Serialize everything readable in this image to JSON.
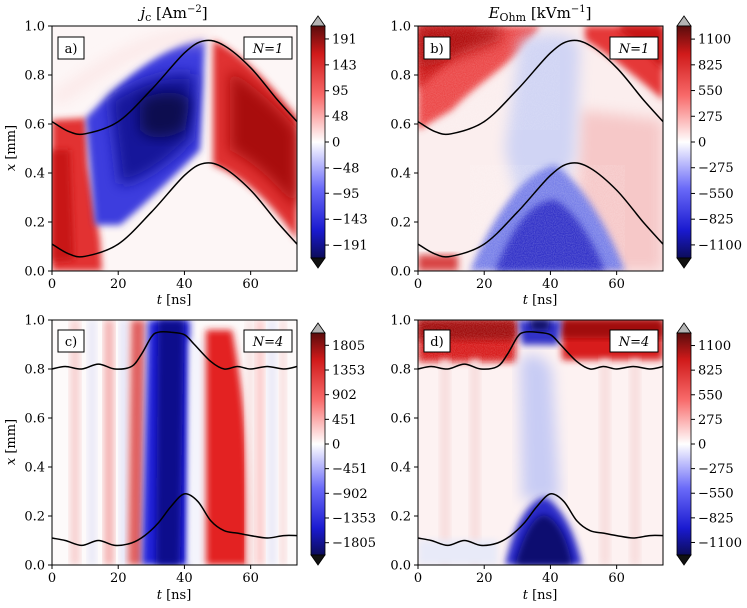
{
  "chart_data": [
    {
      "type": "heatmap",
      "panel_label": "a)",
      "n_label": "N=1",
      "title": "j_c [Am^-2]",
      "xlabel": "t [ns]",
      "ylabel": "x [mm]",
      "xlim": [
        0,
        74
      ],
      "ylim": [
        0,
        1
      ],
      "xticks": [
        "0",
        "20",
        "40",
        "60"
      ],
      "yticks": [
        "0.0",
        "0.2",
        "0.4",
        "0.6",
        "0.8",
        "1.0"
      ],
      "colorbar_ticks": [
        "191",
        "143",
        "95",
        "48",
        "0",
        "-48",
        "-95",
        "-143",
        "-191"
      ],
      "colorbar_range": [
        -215,
        215
      ],
      "boundary_upper": {
        "t": [
          0,
          5,
          10,
          20,
          30,
          40,
          46,
          52,
          60,
          68,
          74
        ],
        "x": [
          0.61,
          0.57,
          0.56,
          0.61,
          0.74,
          0.89,
          0.94,
          0.92,
          0.83,
          0.7,
          0.61
        ]
      },
      "boundary_lower": {
        "t": [
          0,
          5,
          10,
          20,
          30,
          40,
          46,
          52,
          60,
          68,
          74
        ],
        "x": [
          0.11,
          0.07,
          0.06,
          0.11,
          0.24,
          0.39,
          0.44,
          0.42,
          0.33,
          0.2,
          0.11
        ]
      }
    },
    {
      "type": "heatmap",
      "panel_label": "b)",
      "n_label": "N=1",
      "title": "E_Ohm [kVm^-1]",
      "xlabel": "t [ns]",
      "ylabel": "",
      "xlim": [
        0,
        74
      ],
      "ylim": [
        0,
        1
      ],
      "xticks": [
        "0",
        "20",
        "40",
        "60"
      ],
      "yticks": [
        "0.0",
        "0.2",
        "0.4",
        "0.6",
        "0.8",
        "1.0"
      ],
      "colorbar_ticks": [
        "1100",
        "825",
        "550",
        "275",
        "0",
        "-275",
        "-550",
        "-825",
        "-1100"
      ],
      "colorbar_range": [
        -1240,
        1240
      ],
      "boundary_upper": {
        "t": [
          0,
          5,
          10,
          20,
          30,
          40,
          46,
          52,
          60,
          68,
          74
        ],
        "x": [
          0.61,
          0.57,
          0.56,
          0.61,
          0.74,
          0.89,
          0.94,
          0.92,
          0.83,
          0.7,
          0.61
        ]
      },
      "boundary_lower": {
        "t": [
          0,
          5,
          10,
          20,
          30,
          40,
          46,
          52,
          60,
          68,
          74
        ],
        "x": [
          0.11,
          0.07,
          0.06,
          0.11,
          0.24,
          0.39,
          0.44,
          0.42,
          0.33,
          0.2,
          0.11
        ]
      }
    },
    {
      "type": "heatmap",
      "panel_label": "c)",
      "n_label": "N=4",
      "title": "",
      "xlabel": "t [ns]",
      "ylabel": "x [mm]",
      "xlim": [
        0,
        74
      ],
      "ylim": [
        0,
        1
      ],
      "xticks": [
        "0",
        "20",
        "40",
        "60"
      ],
      "yticks": [
        "0.0",
        "0.2",
        "0.4",
        "0.6",
        "0.8",
        "1.0"
      ],
      "colorbar_ticks": [
        "1805",
        "1353",
        "902",
        "451",
        "0",
        "-451",
        "-902",
        "-1353",
        "-1805"
      ],
      "colorbar_range": [
        -2030,
        2030
      ],
      "boundary_upper": {
        "t": [
          0,
          4,
          9,
          14,
          19,
          24,
          27,
          30,
          32,
          36,
          40,
          43,
          48,
          52,
          56,
          60,
          65,
          70,
          74
        ],
        "x": [
          0.8,
          0.81,
          0.8,
          0.82,
          0.8,
          0.81,
          0.86,
          0.93,
          0.95,
          0.95,
          0.94,
          0.9,
          0.83,
          0.8,
          0.81,
          0.8,
          0.81,
          0.8,
          0.81
        ]
      },
      "boundary_lower": {
        "t": [
          0,
          4,
          9,
          14,
          19,
          24,
          28,
          32,
          36,
          40,
          44,
          48,
          52,
          56,
          60,
          65,
          70,
          74
        ],
        "x": [
          0.11,
          0.1,
          0.08,
          0.1,
          0.08,
          0.09,
          0.12,
          0.17,
          0.24,
          0.29,
          0.26,
          0.18,
          0.14,
          0.13,
          0.12,
          0.11,
          0.12,
          0.12
        ]
      }
    },
    {
      "type": "heatmap",
      "panel_label": "d)",
      "n_label": "N=4",
      "title": "",
      "xlabel": "t [ns]",
      "ylabel": "",
      "xlim": [
        0,
        74
      ],
      "ylim": [
        0,
        1
      ],
      "xticks": [
        "0",
        "20",
        "40",
        "60"
      ],
      "yticks": [
        "0.0",
        "0.2",
        "0.4",
        "0.6",
        "0.8",
        "1.0"
      ],
      "colorbar_ticks": [
        "1100",
        "825",
        "550",
        "275",
        "0",
        "-275",
        "-550",
        "-825",
        "-1100"
      ],
      "colorbar_range": [
        -1240,
        1240
      ],
      "boundary_upper": {
        "t": [
          0,
          4,
          9,
          14,
          19,
          24,
          27,
          30,
          32,
          36,
          40,
          43,
          48,
          52,
          56,
          60,
          65,
          70,
          74
        ],
        "x": [
          0.8,
          0.81,
          0.8,
          0.82,
          0.8,
          0.81,
          0.86,
          0.93,
          0.95,
          0.95,
          0.94,
          0.9,
          0.83,
          0.8,
          0.81,
          0.8,
          0.81,
          0.8,
          0.81
        ]
      },
      "boundary_lower": {
        "t": [
          0,
          4,
          9,
          14,
          19,
          24,
          28,
          32,
          36,
          40,
          44,
          48,
          52,
          56,
          60,
          65,
          70,
          74
        ],
        "x": [
          0.11,
          0.1,
          0.08,
          0.1,
          0.08,
          0.09,
          0.12,
          0.17,
          0.24,
          0.29,
          0.26,
          0.18,
          0.14,
          0.13,
          0.12,
          0.11,
          0.12,
          0.12
        ]
      }
    }
  ]
}
